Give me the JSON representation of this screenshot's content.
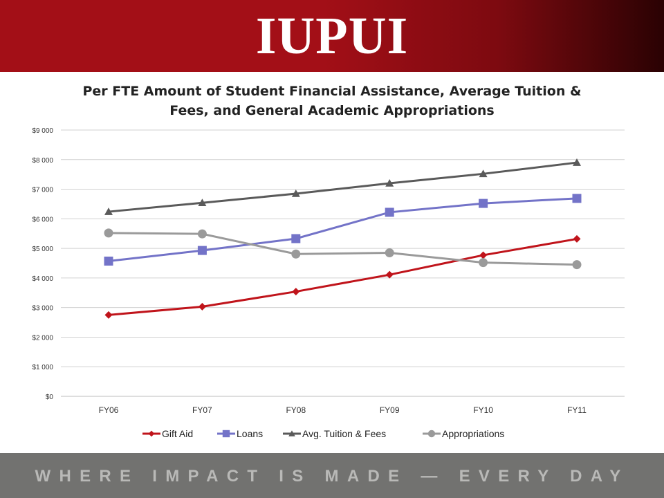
{
  "header": {
    "logo_text": "IUPUI",
    "background": "#a30f17"
  },
  "footer": {
    "tagline": "WHERE IMPACT IS MADE — EVERY DAY",
    "background": "#727270"
  },
  "chart_data": {
    "type": "line",
    "title_line1": "Per FTE Amount of Student Financial Assistance, Average Tuition &",
    "title_line2": "Fees, and General Academic Appropriations",
    "categories": [
      "FY06",
      "FY07",
      "FY08",
      "FY09",
      "FY10",
      "FY11"
    ],
    "y_ticks": [
      "$0",
      "$1 000",
      "$2 000",
      "$3 000",
      "$4 000",
      "$5 000",
      "$6 000",
      "$7 000",
      "$8 000",
      "$9 000"
    ],
    "ylim": [
      0,
      9000
    ],
    "grid": true,
    "legend_position": "bottom",
    "series": [
      {
        "name": "Gift Aid",
        "values": [
          2750,
          3030,
          3540,
          4110,
          4770,
          5320
        ],
        "color": "#c0141b",
        "marker": "diamond"
      },
      {
        "name": "Loans",
        "values": [
          4570,
          4930,
          5330,
          6220,
          6520,
          6690
        ],
        "color": "#7373c8",
        "marker": "square"
      },
      {
        "name": "Avg. Tuition & Fees",
        "values": [
          6240,
          6540,
          6850,
          7200,
          7520,
          7900
        ],
        "color": "#5a5a5a",
        "marker": "triangle"
      },
      {
        "name": "Appropriations",
        "values": [
          5520,
          5490,
          4810,
          4850,
          4520,
          4450
        ],
        "color": "#9a9a9a",
        "marker": "circle"
      }
    ]
  }
}
